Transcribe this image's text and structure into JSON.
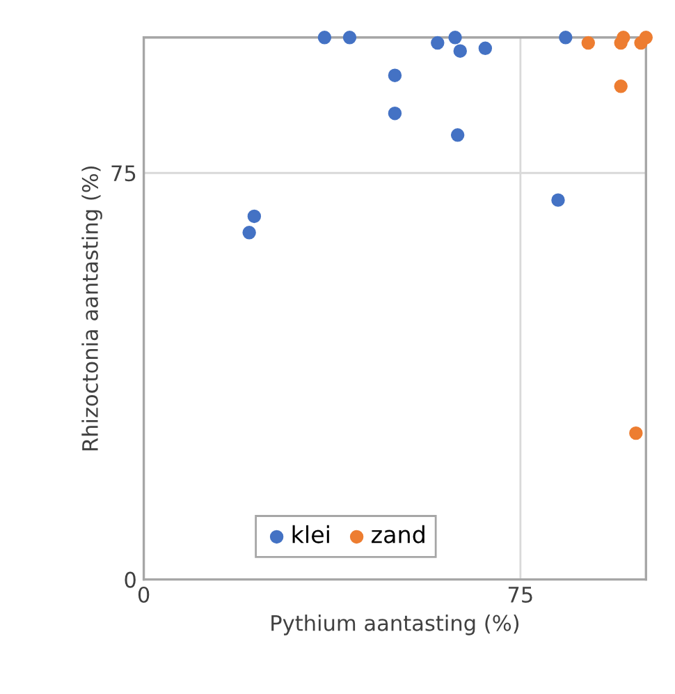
{
  "chart_data": {
    "type": "scatter",
    "xlabel": "Pythium aantasting (%)",
    "ylabel": "Rhizoctonia aantasting (%)",
    "xlim": [
      0,
      100
    ],
    "ylim": [
      0,
      100
    ],
    "xticks": [
      0,
      75
    ],
    "yticks": [
      0,
      75
    ],
    "grid": true,
    "legend": "bottom",
    "marker": "circle",
    "series": [
      {
        "name": "klei",
        "color": "#4472c4",
        "x": [
          36,
          41,
          62,
          58.5,
          63,
          68,
          50,
          50,
          62.5,
          84,
          82.5,
          22,
          21
        ],
        "values": [
          100,
          100,
          100,
          99,
          97.5,
          98,
          93,
          86,
          82,
          100,
          70,
          67,
          64
        ]
      },
      {
        "name": "zand",
        "color": "#ed7d31",
        "x": [
          88.5,
          95.5,
          95,
          99,
          100,
          95,
          98
        ],
        "values": [
          99,
          100,
          99,
          99,
          100,
          91,
          27
        ]
      }
    ]
  }
}
